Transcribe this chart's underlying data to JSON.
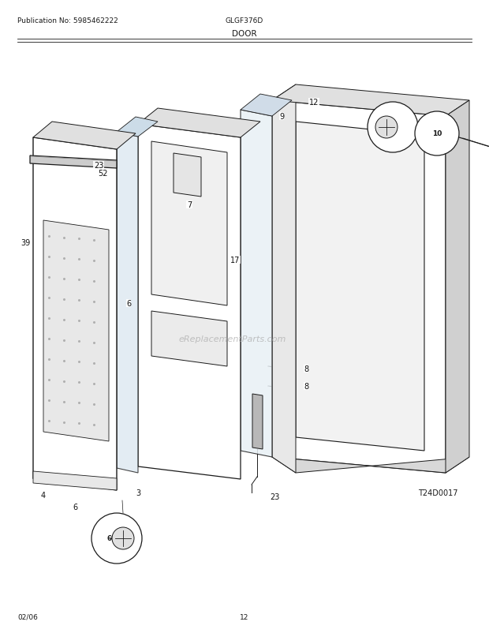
{
  "title": "DOOR",
  "pub_no": "Publication No: 5985462222",
  "model": "GLGF376D",
  "date": "02/06",
  "page": "12",
  "diagram_id": "T24D0017",
  "watermark": "eReplacementParts.com",
  "bg_color": "#ffffff",
  "line_color": "#1a1a1a"
}
